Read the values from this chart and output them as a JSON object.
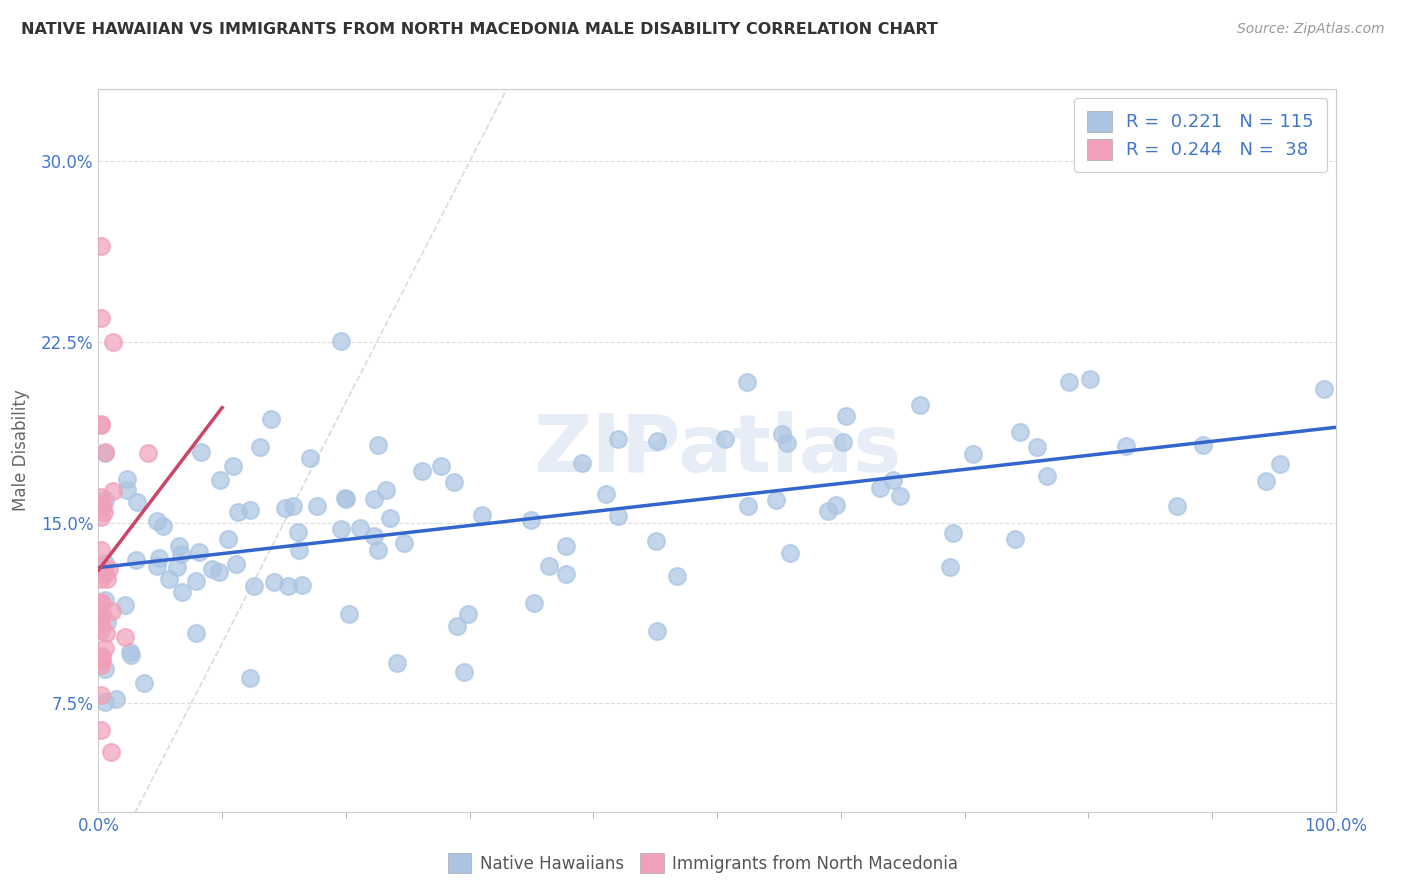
{
  "title": "NATIVE HAWAIIAN VS IMMIGRANTS FROM NORTH MACEDONIA MALE DISABILITY CORRELATION CHART",
  "source": "Source: ZipAtlas.com",
  "ylabel": "Male Disability",
  "xlim": [
    0,
    1.0
  ],
  "ylim": [
    0.03,
    0.33
  ],
  "yticks": [
    0.075,
    0.15,
    0.225,
    0.3
  ],
  "ytick_labels": [
    "7.5%",
    "15.0%",
    "22.5%",
    "30.0%"
  ],
  "xtick_labels": [
    "0.0%",
    "100.0%"
  ],
  "legend_r1": "R =  0.221",
  "legend_n1": "N = 115",
  "legend_r2": "R =  0.244",
  "legend_n2": "N =  38",
  "color_blue": "#aac4e2",
  "color_pink": "#f0a0b8",
  "line_blue": "#3366cc",
  "line_pink": "#cc4466",
  "line_diag": "#cccccc",
  "title_color": "#333333",
  "axis_color": "#4477cc",
  "background": "#ffffff",
  "grid_color": "#dddddd",
  "watermark": "ZIPatlas",
  "legend1_label": "Native Hawaiians",
  "legend2_label": "Immigrants from North Macedonia"
}
